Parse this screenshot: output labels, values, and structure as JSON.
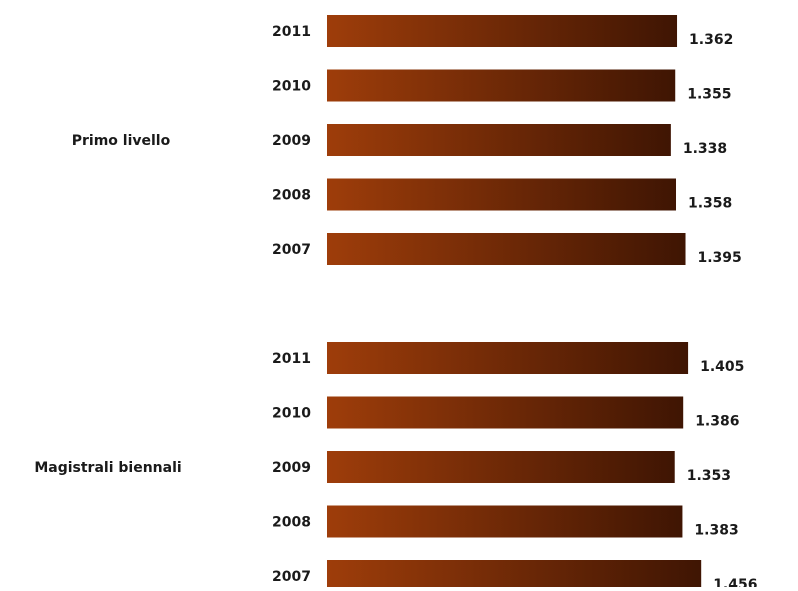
{
  "chart_data": {
    "type": "bar",
    "orientation": "horizontal",
    "title": "",
    "xlabel": "",
    "ylabel": "",
    "xlim": [
      0,
      1.5
    ],
    "grid": false,
    "legend": "none",
    "bar_gradient": [
      "#9e3d0a",
      "#3f1503"
    ],
    "groups": [
      {
        "name": "Primo livello",
        "categories": [
          "2011",
          "2010",
          "2009",
          "2008",
          "2007"
        ],
        "values": [
          1.362,
          1.355,
          1.338,
          1.358,
          1.395
        ],
        "labels": [
          "1.362",
          "1.355",
          "1.338",
          "1.358",
          "1.395"
        ]
      },
      {
        "name": "Magistrali biennali",
        "categories": [
          "2011",
          "2010",
          "2009",
          "2008",
          "2007"
        ],
        "values": [
          1.405,
          1.386,
          1.353,
          1.383,
          1.456
        ],
        "labels": [
          "1.405",
          "1.386",
          "1.353",
          "1.383",
          "1.456"
        ]
      }
    ]
  }
}
